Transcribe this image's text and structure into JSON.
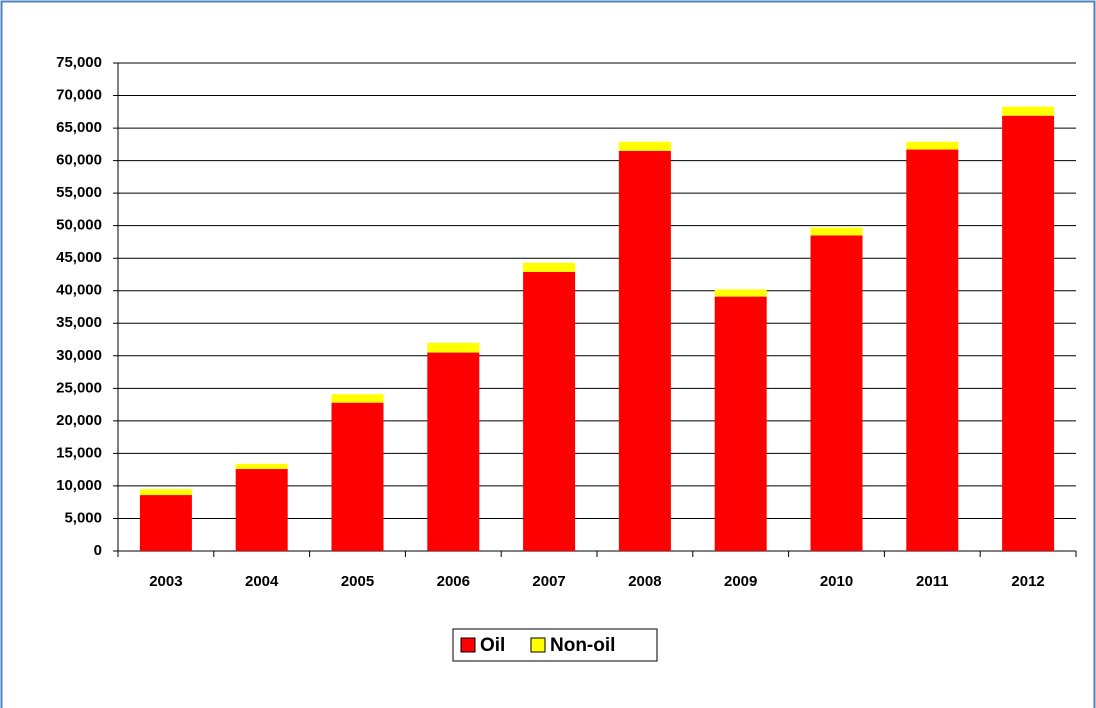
{
  "chart_data": {
    "type": "stacked_bar",
    "categories": [
      "2003",
      "2004",
      "2005",
      "2006",
      "2007",
      "2008",
      "2009",
      "2010",
      "2011",
      "2012"
    ],
    "series": [
      {
        "name": "Oil",
        "color": "#ff0000",
        "values": [
          8600,
          12600,
          22800,
          30500,
          42900,
          61500,
          39100,
          48500,
          61700,
          66900
        ]
      },
      {
        "name": "Non-oil",
        "color": "#ffff00",
        "values": [
          900,
          800,
          1300,
          1500,
          1400,
          1400,
          1100,
          1200,
          1200,
          1400
        ]
      }
    ],
    "ylim": [
      0,
      75000
    ],
    "yticks": [
      0,
      {
        "value": 5000,
        "label": "5,000"
      },
      {
        "value": 10000,
        "label": "10,000"
      },
      {
        "value": 15000,
        "label": "15,000"
      },
      {
        "value": 20000,
        "label": "20,000"
      },
      {
        "value": 25000,
        "label": "25,000"
      },
      {
        "value": 30000,
        "label": "30,000"
      },
      {
        "value": 35000,
        "label": "35,000"
      },
      {
        "value": 40000,
        "label": "40,000"
      },
      {
        "value": 45000,
        "label": "45,000"
      },
      {
        "value": 50000,
        "label": "50,000"
      },
      {
        "value": 55000,
        "label": "55,000"
      },
      {
        "value": 60000,
        "label": "60,000"
      },
      {
        "value": 65000,
        "label": "65,000"
      },
      {
        "value": 70000,
        "label": "70,000"
      },
      {
        "value": 75000,
        "label": "75,000"
      }
    ],
    "grid": true,
    "legend": "bottom"
  }
}
